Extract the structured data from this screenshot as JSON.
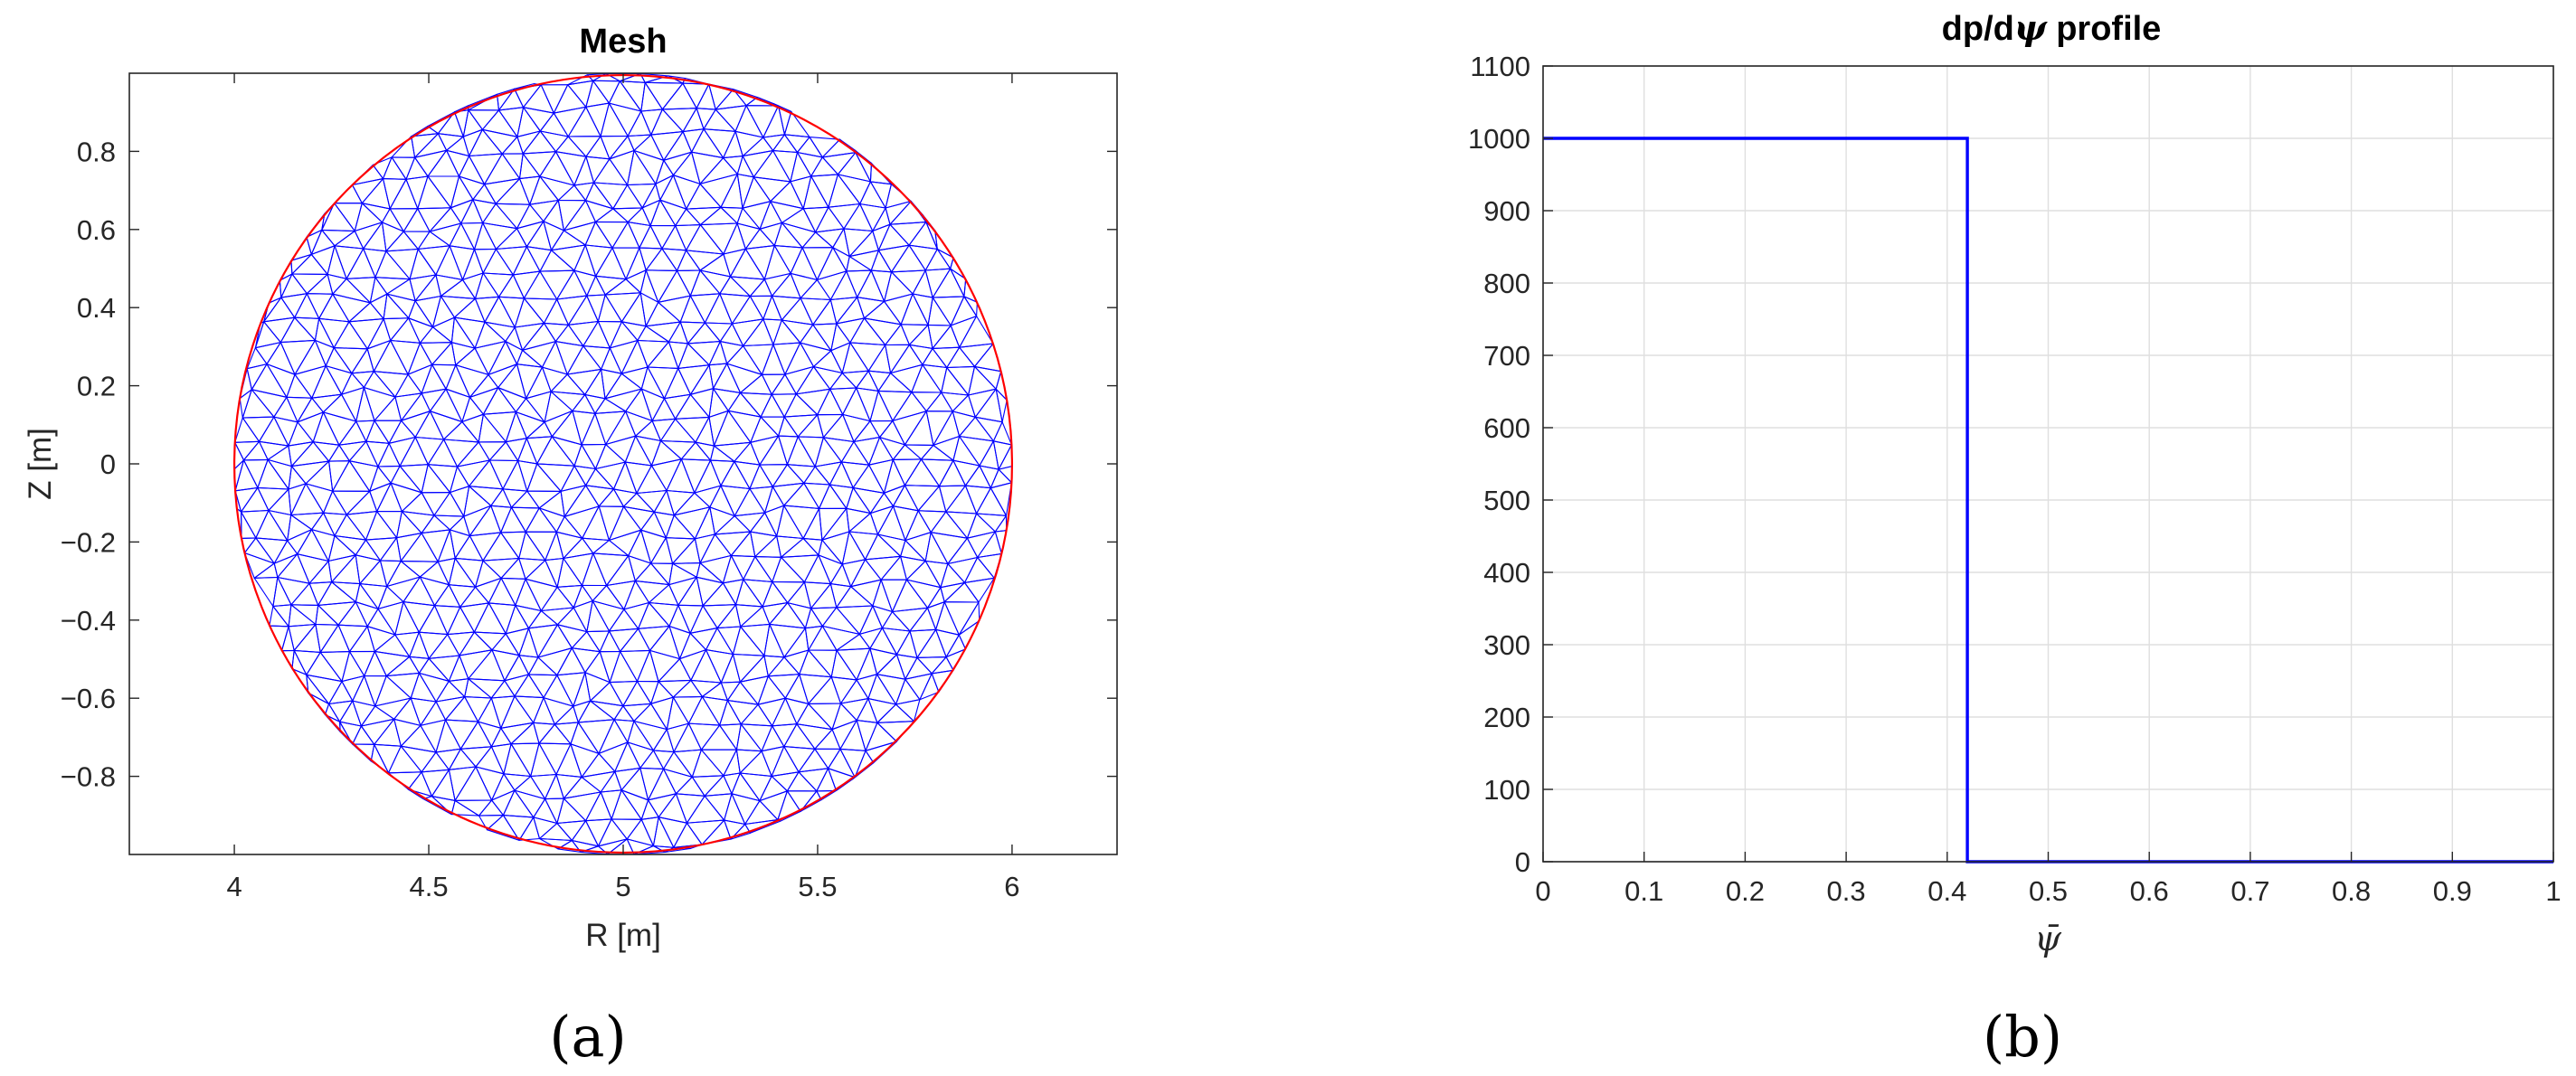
{
  "figure": {
    "panel_labels": [
      "(a)",
      "(b)"
    ]
  },
  "chart_data": [
    {
      "type": "scatter",
      "title": "Mesh",
      "xlabel": "R [m]",
      "ylabel": "Z [m]",
      "xlim": [
        3.73,
        6.27
      ],
      "ylim": [
        -1.0,
        1.0
      ],
      "xticks": [
        4,
        4.5,
        5,
        5.5,
        6
      ],
      "xtick_labels": [
        "4",
        "4.5",
        "5",
        "5.5",
        "6"
      ],
      "yticks": [
        -0.8,
        -0.6,
        -0.4,
        -0.2,
        0,
        0.2,
        0.4,
        0.6,
        0.8
      ],
      "ytick_labels": [
        "−0.8",
        "−0.6",
        "−0.4",
        "−0.2",
        "0",
        "0.2",
        "0.4",
        "0.6",
        "0.8"
      ],
      "grid": false,
      "boundary": {
        "center": [
          5,
          0
        ],
        "radius": 1,
        "color": "#ff0000"
      },
      "mesh": {
        "element": "triangle",
        "color": "#0000ff"
      }
    },
    {
      "type": "line",
      "title": "dp/dψ profile",
      "xlabel": "ψ̄",
      "xlim": [
        0,
        1
      ],
      "ylim": [
        0,
        1100
      ],
      "xticks": [
        0,
        0.1,
        0.2,
        0.3,
        0.4,
        0.5,
        0.6,
        0.7,
        0.8,
        0.9,
        1
      ],
      "xtick_labels": [
        "0",
        "0.1",
        "0.2",
        "0.3",
        "0.4",
        "0.5",
        "0.6",
        "0.7",
        "0.8",
        "0.9",
        "1"
      ],
      "yticks": [
        0,
        100,
        200,
        300,
        400,
        500,
        600,
        700,
        800,
        900,
        1000,
        1100
      ],
      "ytick_labels": [
        "0",
        "100",
        "200",
        "300",
        "400",
        "500",
        "600",
        "700",
        "800",
        "900",
        "1000",
        "1100"
      ],
      "grid": true,
      "series": [
        {
          "x": [
            0,
            0.42,
            0.42,
            1
          ],
          "y": [
            1000,
            1000,
            0,
            0
          ],
          "color": "#0000ff"
        }
      ]
    }
  ]
}
